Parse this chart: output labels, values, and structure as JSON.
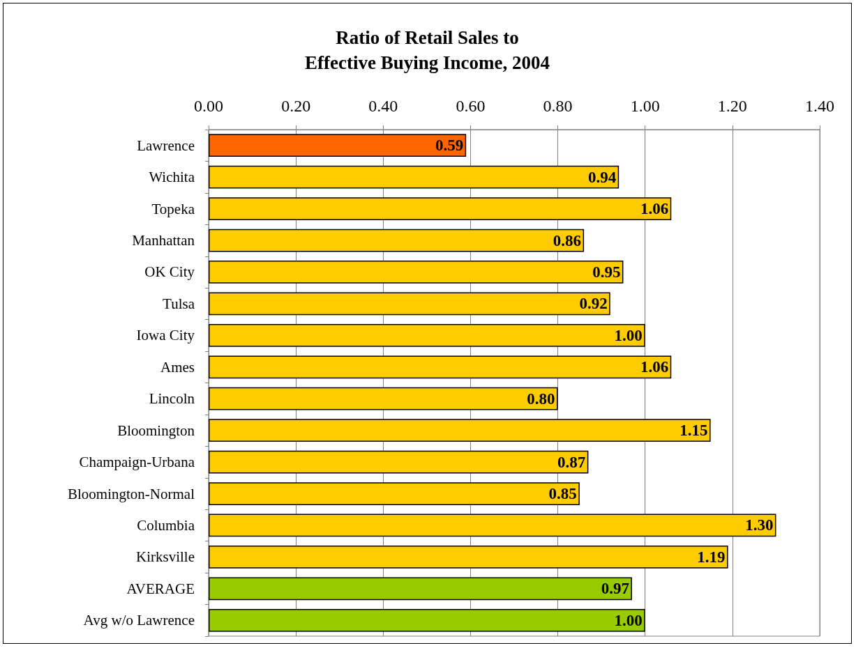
{
  "chart_data": {
    "type": "bar",
    "orientation": "horizontal",
    "title": "Ratio of Retail Sales to\nEffective Buying Income, 2004",
    "categories": [
      "Lawrence",
      "Wichita",
      "Topeka",
      "Manhattan",
      "OK City",
      "Tulsa",
      "Iowa City",
      "Ames",
      "Lincoln",
      "Bloomington",
      "Champaign-Urbana",
      "Bloomington-Normal",
      "Columbia",
      "Kirksville",
      "AVERAGE",
      "Avg w/o Lawrence"
    ],
    "values": [
      0.59,
      0.94,
      1.06,
      0.86,
      0.95,
      0.92,
      1.0,
      1.06,
      0.8,
      1.15,
      0.87,
      0.85,
      1.3,
      1.19,
      0.97,
      1.0
    ],
    "value_labels": [
      "0.59",
      "0.94",
      "1.06",
      "0.86",
      "0.95",
      "0.92",
      "1.00",
      "1.06",
      "0.80",
      "1.15",
      "0.87",
      "0.85",
      "1.30",
      "1.19",
      "0.97",
      "1.00"
    ],
    "colors": [
      "#ff6600",
      "#ffcc00",
      "#ffcc00",
      "#ffcc00",
      "#ffcc00",
      "#ffcc00",
      "#ffcc00",
      "#ffcc00",
      "#ffcc00",
      "#ffcc00",
      "#ffcc00",
      "#ffcc00",
      "#ffcc00",
      "#ffcc00",
      "#99cc00",
      "#99cc00"
    ],
    "xlim": [
      0,
      1.4
    ],
    "xticks": [
      {
        "value": 0,
        "label": "0.00"
      },
      {
        "value": 0.2,
        "label": "0.20"
      },
      {
        "value": 0.4,
        "label": "0.40"
      },
      {
        "value": 0.6,
        "label": "0.60"
      },
      {
        "value": 0.8,
        "label": "0.80"
      },
      {
        "value": 1,
        "label": "1.00"
      },
      {
        "value": 1.2,
        "label": "1.20"
      },
      {
        "value": 1.4,
        "label": "1.40"
      }
    ],
    "grid": "x"
  }
}
